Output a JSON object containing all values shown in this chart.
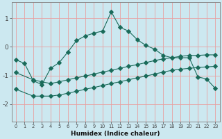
{
  "xlabel": "Humidex (Indice chaleur)",
  "background_color": "#cce8f0",
  "grid_color": "#e8a0a0",
  "line_color": "#1a6b5a",
  "xlim": [
    -0.5,
    23.5
  ],
  "ylim": [
    -2.6,
    1.55
  ],
  "xticks": [
    0,
    1,
    2,
    3,
    4,
    5,
    6,
    7,
    8,
    9,
    10,
    11,
    12,
    13,
    14,
    15,
    16,
    17,
    18,
    19,
    20,
    21,
    22,
    23
  ],
  "yticks": [
    -2,
    -1,
    0,
    1
  ],
  "curve1_x": [
    0,
    1,
    2,
    3,
    4,
    5,
    6,
    7,
    8,
    9,
    10,
    11,
    12,
    13,
    14,
    15,
    16,
    17,
    18,
    19,
    20,
    21,
    22,
    23
  ],
  "curve1_y": [
    -0.45,
    -0.58,
    -1.18,
    -1.32,
    -0.75,
    -0.55,
    -0.18,
    0.22,
    0.38,
    0.48,
    0.55,
    1.22,
    0.68,
    0.55,
    0.25,
    0.05,
    -0.08,
    -0.3,
    -0.38,
    -0.38,
    -0.38,
    -1.05,
    -1.12,
    -1.45
  ],
  "curve2_x": [
    0,
    2,
    3,
    4,
    5,
    6,
    7,
    8,
    9,
    10,
    11,
    12,
    13,
    14,
    15,
    16,
    17,
    18,
    19,
    20,
    21,
    22,
    23
  ],
  "curve2_y": [
    -0.9,
    -1.15,
    -1.22,
    -1.28,
    -1.22,
    -1.15,
    -1.08,
    -1.02,
    -0.95,
    -0.88,
    -0.82,
    -0.75,
    -0.68,
    -0.62,
    -0.55,
    -0.48,
    -0.42,
    -0.38,
    -0.33,
    -0.3,
    -0.3,
    -0.28,
    -0.28
  ],
  "curve3_x": [
    0,
    2,
    3,
    4,
    5,
    6,
    7,
    8,
    9,
    10,
    11,
    12,
    13,
    14,
    15,
    16,
    17,
    18,
    19,
    20,
    21,
    22,
    23
  ],
  "curve3_y": [
    -1.48,
    -1.72,
    -1.72,
    -1.72,
    -1.68,
    -1.62,
    -1.55,
    -1.48,
    -1.42,
    -1.35,
    -1.28,
    -1.22,
    -1.15,
    -1.08,
    -1.02,
    -0.95,
    -0.88,
    -0.82,
    -0.78,
    -0.75,
    -0.72,
    -0.7,
    -0.68
  ]
}
